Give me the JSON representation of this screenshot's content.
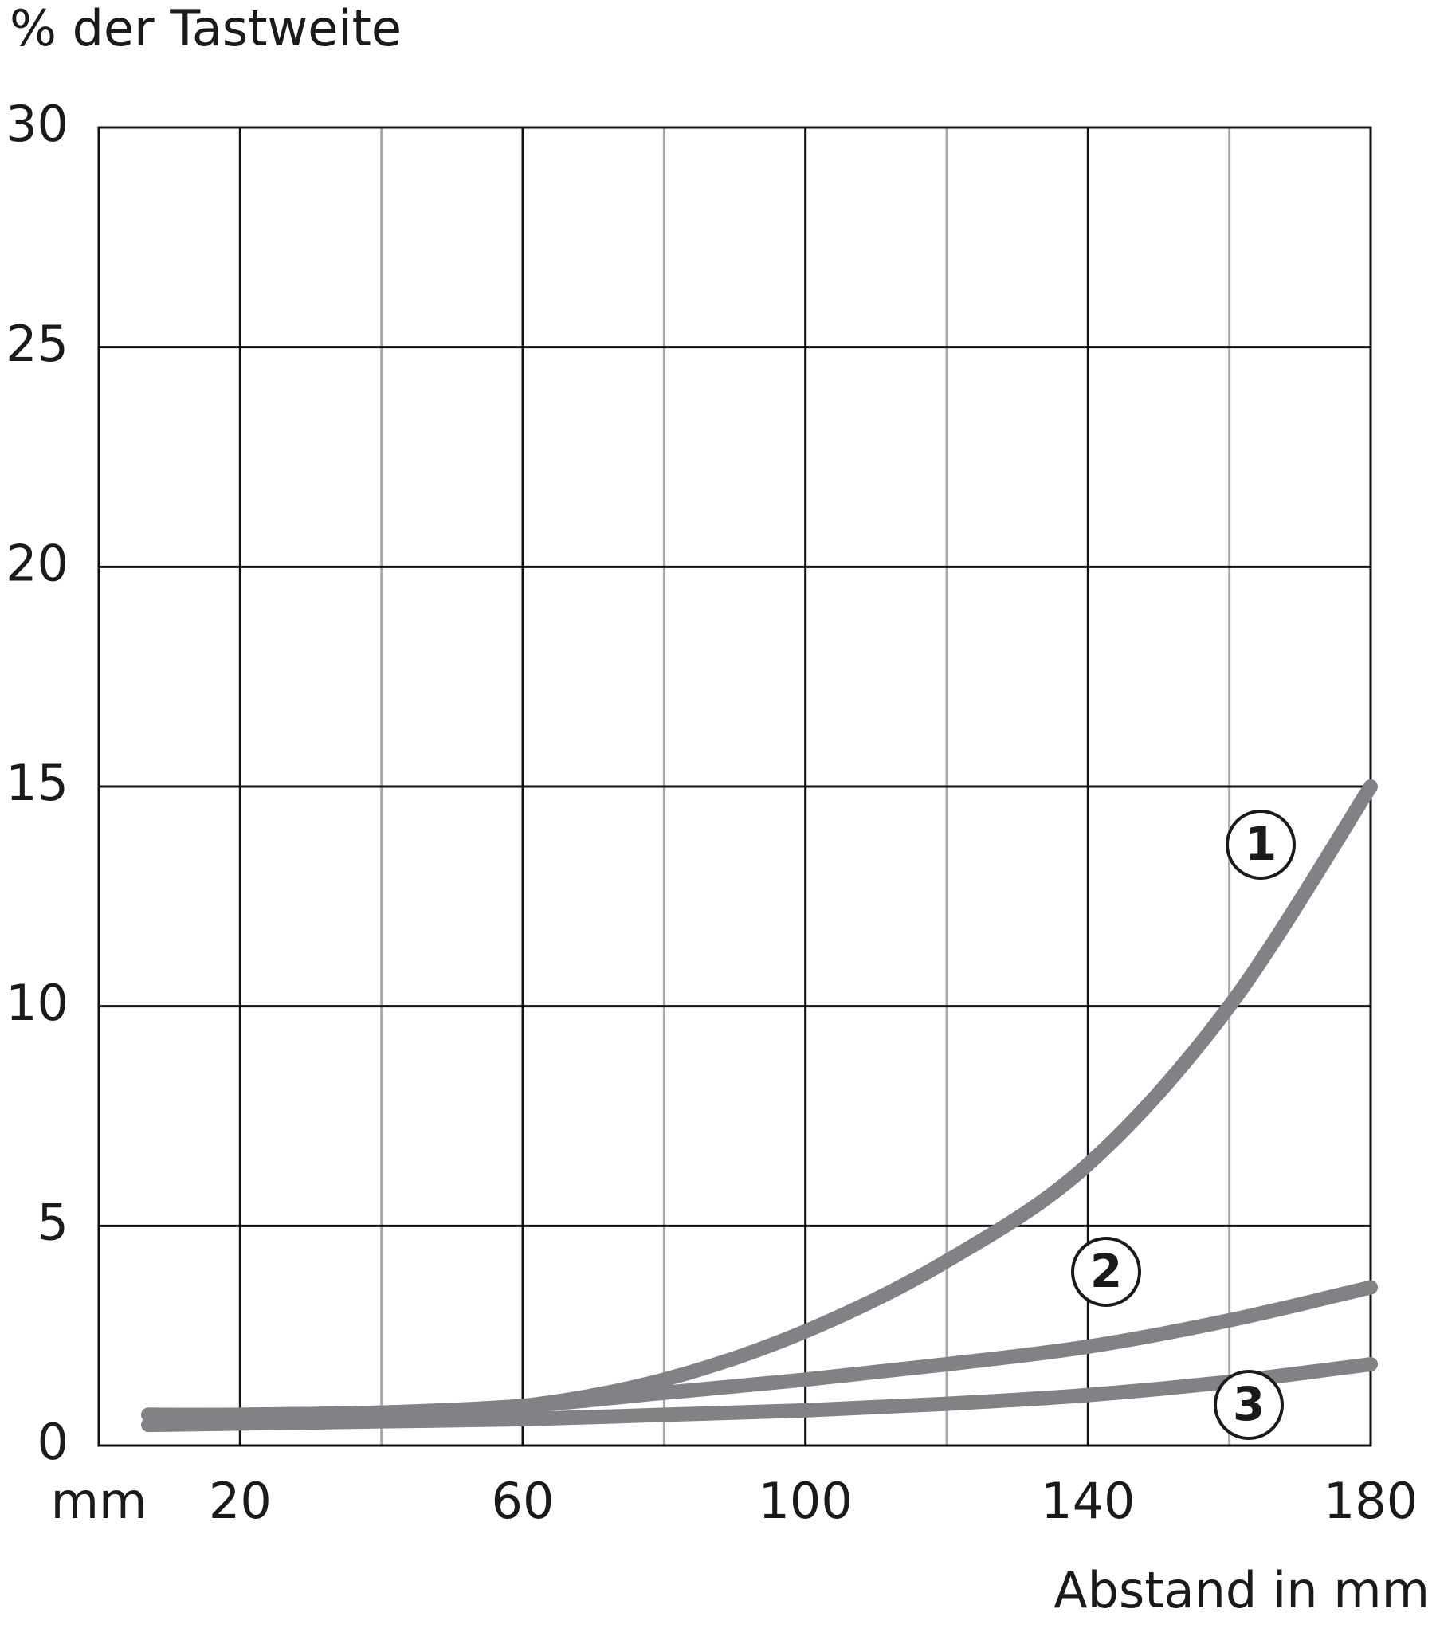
{
  "chart_data": {
    "type": "line",
    "y_label": "% der Tastweite",
    "x_label": "Abstand in mm",
    "x_unit": "mm",
    "xlim": [
      0,
      180
    ],
    "ylim": [
      0,
      30
    ],
    "xticks": [
      20,
      60,
      100,
      140,
      180
    ],
    "xminor": [
      40,
      80,
      120,
      160
    ],
    "yticks": [
      0,
      5,
      10,
      15,
      20,
      25,
      30
    ],
    "grid": true,
    "series": [
      {
        "name": "1",
        "color": "#818285",
        "x": [
          7,
          20,
          40,
          60,
          80,
          100,
          120,
          140,
          160,
          180
        ],
        "values": [
          0.7,
          0.7,
          0.75,
          0.9,
          1.5,
          2.6,
          4.2,
          6.4,
          10.0,
          15.0
        ]
      },
      {
        "name": "2",
        "color": "#818285",
        "x": [
          7,
          20,
          40,
          60,
          80,
          100,
          120,
          140,
          160,
          180
        ],
        "values": [
          0.7,
          0.7,
          0.75,
          0.9,
          1.2,
          1.5,
          1.85,
          2.25,
          2.85,
          3.6
        ]
      },
      {
        "name": "3",
        "color": "#818285",
        "x": [
          7,
          20,
          40,
          60,
          80,
          100,
          120,
          140,
          160,
          180
        ],
        "values": [
          0.47,
          0.5,
          0.55,
          0.6,
          0.7,
          0.8,
          0.95,
          1.15,
          1.45,
          1.85
        ]
      }
    ]
  }
}
